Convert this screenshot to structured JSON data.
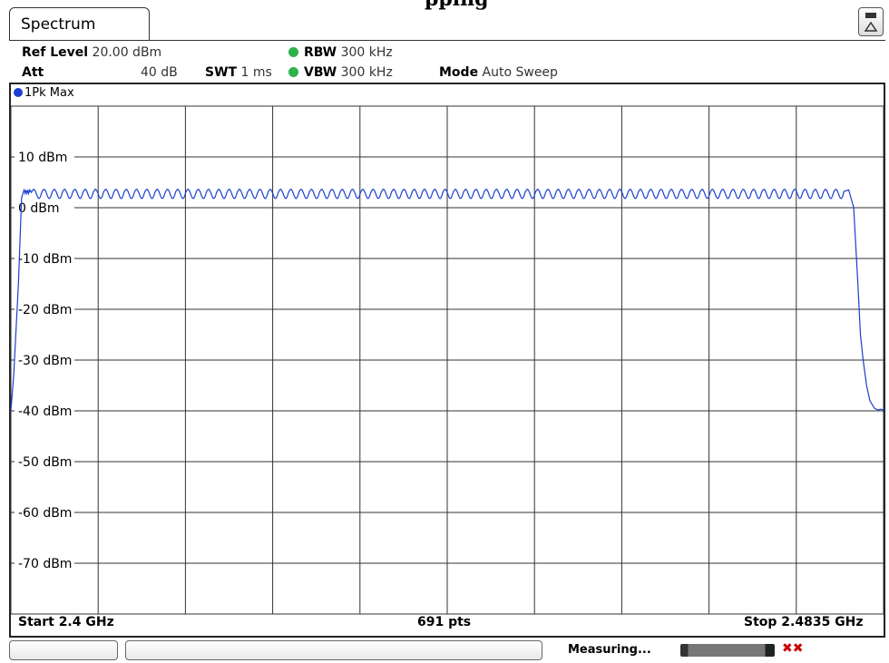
{
  "page_title_fragment": "pping",
  "tab": {
    "label": "Spectrum"
  },
  "settings": {
    "ref_level_label": "Ref Level",
    "ref_level_value": "20.00 dBm",
    "att_label": "Att",
    "att_value": "40 dB",
    "swt_label": "SWT",
    "swt_value": "1 ms",
    "rbw_label": "RBW",
    "rbw_value": "300 kHz",
    "vbw_label": "VBW",
    "vbw_value": "300 kHz",
    "mode_label": "Mode",
    "mode_value": "Auto Sweep"
  },
  "trace": {
    "label": "1Pk Max",
    "color": "#1a3fd0"
  },
  "footer": {
    "start": "Start 2.4 GHz",
    "points": "691 pts",
    "stop": "Stop 2.4835 GHz"
  },
  "status": {
    "measuring": "Measuring..."
  },
  "chart_data": {
    "type": "line",
    "xlim": [
      2.4,
      2.4835
    ],
    "ylim": [
      -80,
      20
    ],
    "yticks": [
      10,
      0,
      -10,
      -20,
      -30,
      -40,
      -50,
      -60,
      -70
    ],
    "ytick_labels": [
      "10 dBm",
      "0 dBm",
      "-10 dBm",
      "-20 dBm",
      "-30 dBm",
      "-40 dBm",
      "-50 dBm",
      "-60 dBm",
      "-70 dBm"
    ],
    "grid": true,
    "series": [
      {
        "name": "1Pk Max",
        "x": [
          2.4,
          2.40027,
          2.40072,
          2.40102,
          2.40127,
          2.40136,
          2.40145,
          2.40154,
          2.40163,
          2.4017,
          2.40181,
          2.40197,
          2.41,
          2.42,
          2.43,
          2.44,
          2.45,
          2.46,
          2.47,
          2.4797,
          2.48017,
          2.48064,
          2.48104,
          2.48129,
          2.48155,
          2.48188,
          2.48219,
          2.48263,
          2.48293,
          2.4833,
          2.4835
        ],
        "y": [
          -40,
          -33,
          -15,
          2,
          3.5,
          2.8,
          3.5,
          2.8,
          3.5,
          2.8,
          3.5,
          3.0,
          3.0,
          3.0,
          3.0,
          3.0,
          3.0,
          3.0,
          3.0,
          3.2,
          3.5,
          0,
          -15,
          -25,
          -30,
          -35,
          -38,
          -39.5,
          -39.8,
          -39.7,
          -39.9
        ],
        "note_ripple_amplitude_db": 1.5,
        "ripple_count": 79
      }
    ]
  }
}
